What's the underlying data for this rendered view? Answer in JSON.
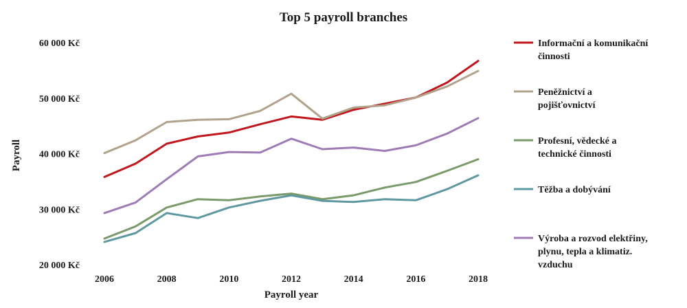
{
  "chart_data": {
    "type": "line",
    "title": "Top 5 payroll branches",
    "xlabel": "Payroll year",
    "ylabel": "Payroll",
    "x": [
      2006,
      2007,
      2008,
      2009,
      2010,
      2011,
      2012,
      2013,
      2014,
      2015,
      2016,
      2017,
      2018
    ],
    "xticks": [
      2006,
      2008,
      2010,
      2012,
      2014,
      2016,
      2018
    ],
    "xtick_labels": [
      "2006",
      "2008",
      "2010",
      "2012",
      "2014",
      "2016",
      "2018"
    ],
    "xlim": [
      2006,
      2018
    ],
    "ylim": [
      20000,
      60000
    ],
    "yticks": [
      20000,
      30000,
      40000,
      50000,
      60000
    ],
    "ytick_labels": [
      "20 000 Kč",
      "30 000 Kč",
      "40 000 Kč",
      "50 000 Kč",
      "60 000 Kč"
    ],
    "grid": false,
    "legend_position": "right",
    "series": [
      {
        "name": "Informační a komunikační činnosti",
        "legend_lines": [
          "Informační a komunikační",
          "činnosti"
        ],
        "color": "#c0171d",
        "values": [
          35800,
          38200,
          41800,
          43100,
          43800,
          45300,
          46700,
          46100,
          47900,
          49000,
          50100,
          52800,
          56700
        ]
      },
      {
        "name": "Peněžnictví a pojišťovnictví",
        "legend_lines": [
          "Peněžnictví a",
          "pojišťovnictví"
        ],
        "color": "#b1a28b",
        "values": [
          40100,
          42400,
          45700,
          46100,
          46200,
          47700,
          50800,
          46300,
          48300,
          48700,
          50100,
          52100,
          54900
        ]
      },
      {
        "name": "Profesní, vědecké a technické činnosti",
        "legend_lines": [
          "Profesní, vědecké a",
          "technické činnosti"
        ],
        "color": "#7a9a69",
        "values": [
          24700,
          26900,
          30300,
          31800,
          31600,
          32300,
          32800,
          31800,
          32500,
          33900,
          34900,
          36900,
          39000
        ]
      },
      {
        "name": "Těžba a dobývání",
        "legend_lines": [
          "Těžba a dobývání"
        ],
        "color": "#5f98a0",
        "values": [
          24100,
          25700,
          29300,
          28400,
          30300,
          31500,
          32500,
          31500,
          31300,
          31800,
          31600,
          33600,
          36100
        ]
      },
      {
        "name": "Výroba a rozvod elektřiny, plynu, tepla a klimatiz. vzduchu",
        "legend_lines": [
          "Výroba a rozvod elektřiny,",
          "plynu, tepla a klimatiz.",
          "vzduchu"
        ],
        "color": "#9f7bb5",
        "values": [
          29300,
          31200,
          35400,
          39500,
          40300,
          40200,
          42700,
          40800,
          41100,
          40500,
          41500,
          43600,
          46400
        ]
      }
    ]
  }
}
